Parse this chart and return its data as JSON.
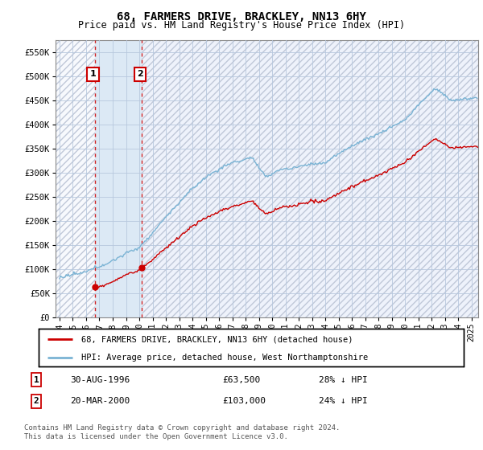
{
  "title": "68, FARMERS DRIVE, BRACKLEY, NN13 6HY",
  "subtitle": "Price paid vs. HM Land Registry's House Price Index (HPI)",
  "ylabel_ticks": [
    "£0",
    "£50K",
    "£100K",
    "£150K",
    "£200K",
    "£250K",
    "£300K",
    "£350K",
    "£400K",
    "£450K",
    "£500K",
    "£550K"
  ],
  "ytick_values": [
    0,
    50000,
    100000,
    150000,
    200000,
    250000,
    300000,
    350000,
    400000,
    450000,
    500000,
    550000
  ],
  "ylim": [
    0,
    575000
  ],
  "xlim_start": 1993.7,
  "xlim_end": 2025.5,
  "hpi_color": "#7ab3d4",
  "price_color": "#cc0000",
  "sale1_year": 1996.66,
  "sale1_price": 63500,
  "sale2_year": 2000.21,
  "sale2_price": 103000,
  "legend_price_label": "68, FARMERS DRIVE, BRACKLEY, NN13 6HY (detached house)",
  "legend_hpi_label": "HPI: Average price, detached house, West Northamptonshire",
  "background_color": "#ffffff",
  "plot_bg_color": "#eef2fb",
  "grid_color": "#b8c8de",
  "hatch_color": "#c0c8d8",
  "between_color": "#dce9f5",
  "footnote": "Contains HM Land Registry data © Crown copyright and database right 2024.\nThis data is licensed under the Open Government Licence v3.0."
}
